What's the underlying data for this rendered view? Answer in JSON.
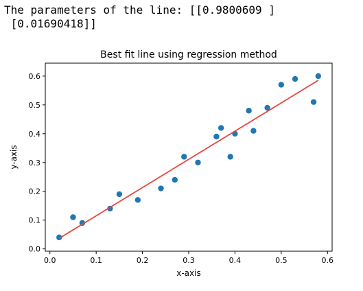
{
  "output": {
    "line1": "The parameters of the line: [[0.9800609 ]",
    "line2": " [0.01690418]]"
  },
  "chart_data": {
    "type": "scatter",
    "title": "Best fit line using regression method",
    "xlabel": "x-axis",
    "ylabel": "y-axis",
    "xlim": [
      -0.01,
      0.61
    ],
    "ylim": [
      -0.008,
      0.645
    ],
    "xticks": [
      0.0,
      0.1,
      0.2,
      0.3,
      0.4,
      0.5,
      0.6
    ],
    "xtick_labels": [
      "0.0",
      "0.1",
      "0.2",
      "0.3",
      "0.4",
      "0.5",
      "0.6"
    ],
    "yticks": [
      0.0,
      0.1,
      0.2,
      0.3,
      0.4,
      0.5,
      0.6
    ],
    "ytick_labels": [
      "0.0",
      "0.1",
      "0.2",
      "0.3",
      "0.4",
      "0.5",
      "0.6"
    ],
    "grid": false,
    "series": [
      {
        "type": "scatter",
        "color": "#1f77b4",
        "points": [
          {
            "x": 0.02,
            "y": 0.04
          },
          {
            "x": 0.05,
            "y": 0.11
          },
          {
            "x": 0.07,
            "y": 0.09
          },
          {
            "x": 0.13,
            "y": 0.14
          },
          {
            "x": 0.15,
            "y": 0.19
          },
          {
            "x": 0.19,
            "y": 0.17
          },
          {
            "x": 0.24,
            "y": 0.21
          },
          {
            "x": 0.27,
            "y": 0.24
          },
          {
            "x": 0.29,
            "y": 0.32
          },
          {
            "x": 0.32,
            "y": 0.3
          },
          {
            "x": 0.36,
            "y": 0.39
          },
          {
            "x": 0.37,
            "y": 0.42
          },
          {
            "x": 0.39,
            "y": 0.32
          },
          {
            "x": 0.4,
            "y": 0.4
          },
          {
            "x": 0.43,
            "y": 0.48
          },
          {
            "x": 0.44,
            "y": 0.41
          },
          {
            "x": 0.47,
            "y": 0.49
          },
          {
            "x": 0.5,
            "y": 0.57
          },
          {
            "x": 0.53,
            "y": 0.59
          },
          {
            "x": 0.57,
            "y": 0.51
          },
          {
            "x": 0.58,
            "y": 0.6
          }
        ]
      },
      {
        "type": "line",
        "color": "#e8473d",
        "slope": 0.9800609,
        "intercept": 0.01690418,
        "x_range": [
          0.02,
          0.58
        ]
      }
    ]
  }
}
